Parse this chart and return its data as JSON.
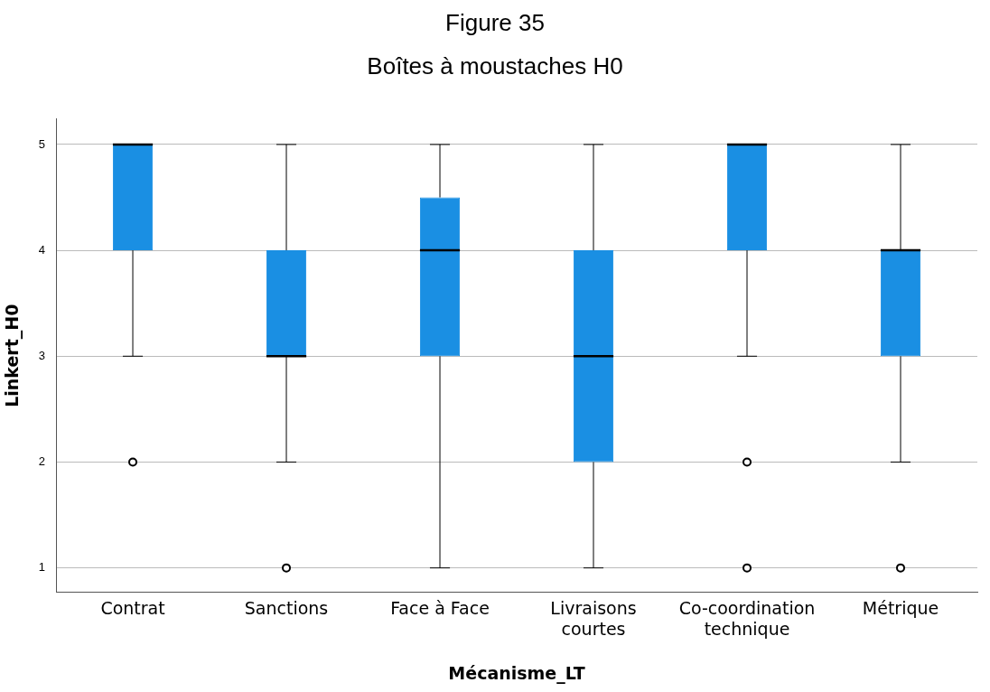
{
  "chart_data": {
    "type": "box",
    "title": "Figure 35",
    "subtitle": "Boîtes à moustaches H0",
    "xlabel": "Mécanisme_LT",
    "ylabel": "Linkert_H0",
    "categories": [
      "Contrat",
      "Sanctions",
      "Face à Face",
      "Livraisons courtes",
      "Co-coordination technique",
      "Métrique"
    ],
    "color": "#1a8fe3",
    "boxes": [
      {
        "low": 3,
        "q1": 4,
        "median": 5,
        "q3": 5,
        "high": 5,
        "outliers": [
          2
        ]
      },
      {
        "low": 2,
        "q1": 3,
        "median": 3,
        "q3": 4,
        "high": 5,
        "outliers": [
          1
        ]
      },
      {
        "low": 1,
        "q1": 3,
        "median": 4,
        "q3": 4.5,
        "high": 5
      },
      {
        "low": 1,
        "q1": 2,
        "median": 3,
        "q3": 4,
        "high": 5
      },
      {
        "low": 3,
        "q1": 4,
        "median": 5,
        "q3": 5,
        "high": 5,
        "outliers": [
          2,
          1
        ]
      },
      {
        "low": 2,
        "q1": 3,
        "median": 4,
        "q3": 4,
        "high": 5,
        "outliers": [
          1
        ]
      }
    ],
    "ylim": [
      0.77,
      5.24
    ],
    "yticks": [
      1,
      2,
      3,
      4,
      5
    ],
    "grid": "y"
  }
}
